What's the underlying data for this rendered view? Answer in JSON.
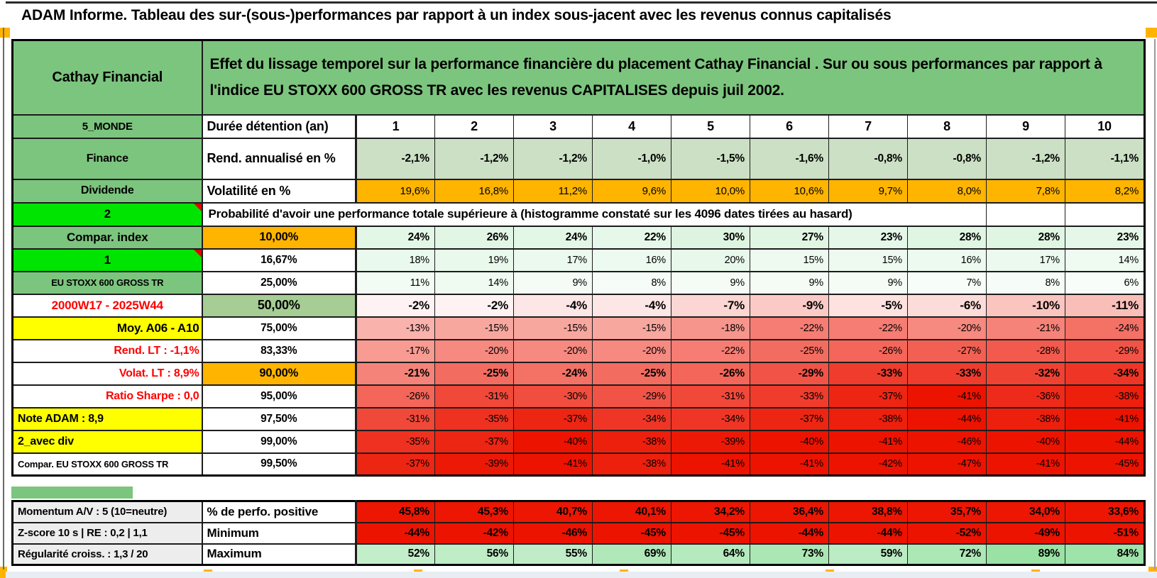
{
  "title": "ADAM Informe. Tableau des sur-(sous-)performances par rapport à un index sous-jacent avec les revenus connus capitalisés",
  "colors": {
    "band_green": "#7CC57E",
    "bright_green": "#00E402",
    "orange": "#FFB400",
    "yellow": "#FFFF00",
    "gray": "#EDEDED",
    "red_text": "#FF0000",
    "sage_cell": "#CBE0C4",
    "threshold_green": "#A6CD93",
    "full_red": "#ED1602",
    "red_anchor": "#EC1300",
    "green_anchor": "#8CDE99"
  },
  "header": {
    "name": "Cathay Financial",
    "description": "Effet du lissage temporel sur la performance financière du placement Cathay Financial . Sur ou sous performances par rapport à l'indice EU STOXX 600 GROSS TR avec les revenus CAPITALISES depuis juil 2002."
  },
  "duree": {
    "label": "5_MONDE",
    "header": "Durée détention (an)",
    "columns": [
      "1",
      "2",
      "3",
      "4",
      "5",
      "6",
      "7",
      "8",
      "9",
      "10"
    ]
  },
  "rend": {
    "label": "Finance",
    "header": "Rend. annualisé en %",
    "values": [
      "-2,1%",
      "-1,2%",
      "-1,2%",
      "-1,0%",
      "-1,5%",
      "-1,6%",
      "-0,8%",
      "-0,8%",
      "-1,2%",
      "-1,1%"
    ]
  },
  "volat": {
    "label": "Dividende",
    "header": "Volatilité en %",
    "values": [
      "19,6%",
      "16,8%",
      "11,2%",
      "9,6%",
      "10,0%",
      "10,6%",
      "9,7%",
      "8,0%",
      "7,8%",
      "8,2%"
    ]
  },
  "proba_title": {
    "label": "2",
    "text": "Probabilité d'avoir une performance totale supérieure à (histogramme constaté sur les 4096 dates tirées au hasard)"
  },
  "proba_rows": [
    {
      "label": "Compar. index",
      "label_bg": "green",
      "label_color": "black",
      "label_align": "center",
      "label_size": 17,
      "threshold": "10,00%",
      "threshold_bg": "orange",
      "threshold_size": 16.5,
      "emphasis": true,
      "values": [
        "24%",
        "26%",
        "24%",
        "22%",
        "30%",
        "27%",
        "23%",
        "28%",
        "28%",
        "23%"
      ]
    },
    {
      "label": "1",
      "label_bg": "bright",
      "label_color": "black",
      "label_align": "center",
      "label_size": 17,
      "comment_marker": true,
      "threshold": "16,67%",
      "threshold_bg": "white",
      "threshold_size": 15.5,
      "emphasis": false,
      "values": [
        "18%",
        "19%",
        "17%",
        "16%",
        "20%",
        "15%",
        "15%",
        "16%",
        "17%",
        "14%"
      ]
    },
    {
      "label": "EU STOXX 600 GROSS TR",
      "label_bg": "green",
      "label_color": "black",
      "label_align": "center",
      "label_size": 13,
      "threshold": "25,00%",
      "threshold_bg": "white",
      "threshold_size": 15.5,
      "emphasis": false,
      "values": [
        "11%",
        "14%",
        "9%",
        "8%",
        "9%",
        "9%",
        "9%",
        "7%",
        "8%",
        "6%"
      ]
    },
    {
      "label": "2000W17 - 2025W44",
      "label_bg": "white",
      "label_color": "red",
      "label_align": "center",
      "label_size": 17,
      "threshold": "50,00%",
      "threshold_bg": "green",
      "threshold_size": 18,
      "emphasis": "big",
      "values": [
        "-2%",
        "-2%",
        "-4%",
        "-4%",
        "-7%",
        "-9%",
        "-5%",
        "-6%",
        "-10%",
        "-11%"
      ]
    },
    {
      "label": "Moy. A06 - A10",
      "label_bg": "yellow",
      "label_color": "black",
      "label_align": "right",
      "label_size": 17,
      "threshold": "75,00%",
      "threshold_bg": "white",
      "threshold_size": 15.5,
      "emphasis": false,
      "values": [
        "-13%",
        "-15%",
        "-15%",
        "-15%",
        "-18%",
        "-22%",
        "-22%",
        "-20%",
        "-21%",
        "-24%"
      ]
    },
    {
      "label": "Rend. LT :   -1,1%",
      "label_bg": "white",
      "label_color": "red",
      "label_align": "right",
      "label_size": 16,
      "threshold": "83,33%",
      "threshold_bg": "white",
      "threshold_size": 15.5,
      "emphasis": false,
      "values": [
        "-17%",
        "-20%",
        "-20%",
        "-20%",
        "-22%",
        "-25%",
        "-26%",
        "-27%",
        "-28%",
        "-29%"
      ]
    },
    {
      "label": "Volat. LT :   8,9%",
      "label_bg": "white",
      "label_color": "red",
      "label_align": "right",
      "label_size": 16,
      "threshold": "90,00%",
      "threshold_bg": "orange",
      "threshold_size": 16.5,
      "emphasis": true,
      "values": [
        "-21%",
        "-25%",
        "-24%",
        "-25%",
        "-26%",
        "-29%",
        "-33%",
        "-33%",
        "-32%",
        "-34%"
      ]
    },
    {
      "label": "Ratio Sharpe :   0,0",
      "label_bg": "white",
      "label_color": "red",
      "label_align": "right",
      "label_size": 16,
      "threshold": "95,00%",
      "threshold_bg": "white",
      "threshold_size": 15.5,
      "emphasis": false,
      "values": [
        "-26%",
        "-31%",
        "-30%",
        "-29%",
        "-31%",
        "-33%",
        "-37%",
        "-41%",
        "-36%",
        "-38%"
      ]
    },
    {
      "label": "Note ADAM : 8,9",
      "label_bg": "yellow",
      "label_color": "black",
      "label_align": "left",
      "label_size": 16,
      "threshold": "97,50%",
      "threshold_bg": "white",
      "threshold_size": 15.5,
      "emphasis": false,
      "values": [
        "-31%",
        "-35%",
        "-37%",
        "-34%",
        "-34%",
        "-37%",
        "-38%",
        "-44%",
        "-38%",
        "-41%"
      ]
    },
    {
      "label": "2_avec div",
      "label_bg": "yellow",
      "label_color": "black",
      "label_align": "left",
      "label_size": 16,
      "threshold": "99,00%",
      "threshold_bg": "white",
      "threshold_size": 15.5,
      "emphasis": false,
      "values": [
        "-35%",
        "-37%",
        "-40%",
        "-38%",
        "-39%",
        "-40%",
        "-41%",
        "-46%",
        "-40%",
        "-44%"
      ]
    },
    {
      "label": "Compar. EU STOXX 600 GROSS TR",
      "label_bg": "white",
      "label_color": "black",
      "label_align": "left",
      "label_size": 13,
      "threshold": "99,50%",
      "threshold_bg": "white",
      "threshold_size": 15.5,
      "emphasis": false,
      "values": [
        "-37%",
        "-39%",
        "-41%",
        "-38%",
        "-41%",
        "-41%",
        "-42%",
        "-47%",
        "-41%",
        "-45%"
      ]
    }
  ],
  "footer_rows": [
    {
      "label": "Momentum A/V : 5 (10=neutre)",
      "header": "% de perfo. positive",
      "value_style": "solid_red",
      "values": [
        "45,8%",
        "45,3%",
        "40,7%",
        "40,1%",
        "34,2%",
        "36,4%",
        "38,8%",
        "35,7%",
        "34,0%",
        "33,6%"
      ]
    },
    {
      "label": "Z-score 10 s | RE : 0,2 | 1,1",
      "header": "Minimum",
      "value_style": "scale",
      "values": [
        "-44%",
        "-42%",
        "-46%",
        "-45%",
        "-45%",
        "-44%",
        "-44%",
        "-52%",
        "-49%",
        "-51%"
      ]
    },
    {
      "label": "Régularité croiss. : 1,3 / 20",
      "header": "Maximum",
      "value_style": "scale",
      "values": [
        "52%",
        "56%",
        "55%",
        "69%",
        "64%",
        "73%",
        "59%",
        "72%",
        "89%",
        "84%"
      ]
    }
  ]
}
